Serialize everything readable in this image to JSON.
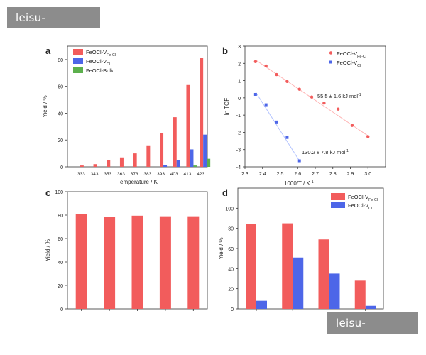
{
  "watermark": {
    "top": "leisu-sina.com",
    "bottom": "leisu-sina.com"
  },
  "colors": {
    "red": "#f25c5c",
    "blue": "#4d66e8",
    "green": "#5cb04d",
    "axis": "#333333",
    "text": "#222222",
    "fit": "#ffb3b3",
    "fit_blue": "#b3c3ff"
  },
  "chart_data": [
    {
      "panel": "a",
      "type": "bar",
      "xlabel": "Temperature / K",
      "ylabel": "Yield / %",
      "ylim": [
        0,
        90
      ],
      "yticks": [
        "0",
        "20",
        "40",
        "60",
        "80"
      ],
      "categories": [
        "333",
        "343",
        "353",
        "363",
        "373",
        "383",
        "393",
        "403",
        "413",
        "423"
      ],
      "legend": [
        {
          "main": "FeOCl-V",
          "sub": "Fe-Cl",
          "tail": ""
        },
        {
          "main": "FeOCl-V",
          "sub": "Cl",
          "tail": ""
        },
        {
          "main": "FeOCl-Bulk",
          "sub": "",
          "tail": ""
        }
      ],
      "series": [
        {
          "name": "FeOCl-VFe-Cl",
          "values": [
            1,
            2,
            5,
            7,
            10,
            16,
            25,
            37,
            61,
            81
          ]
        },
        {
          "name": "FeOCl-VCl",
          "values": [
            0,
            0,
            0,
            0,
            0,
            0,
            1.5,
            5,
            13,
            24
          ]
        },
        {
          "name": "FeOCl-Bulk",
          "values": [
            0,
            0,
            0,
            0,
            0,
            0,
            0,
            0,
            1,
            6
          ]
        }
      ]
    },
    {
      "panel": "b",
      "type": "scatter",
      "xlabel": "1000/T / K",
      "xlabel_sup": "-1",
      "ylabel": "ln TOF",
      "xlim": [
        2.3,
        3.1
      ],
      "ylim": [
        -4,
        3
      ],
      "xticks": [
        "2.3",
        "2.4",
        "2.5",
        "2.6",
        "2.7",
        "2.8",
        "2.9",
        "3.0"
      ],
      "yticks": [
        "-4",
        "-3",
        "-2",
        "-1",
        "0",
        "1",
        "2",
        "3"
      ],
      "legend": [
        {
          "main": "FeOCl-V",
          "sub": "Fe-Cl"
        },
        {
          "main": "FeOCl-V",
          "sub": "Cl"
        }
      ],
      "annotations": [
        {
          "text": "55.5 ± 1.6 kJ mol",
          "sup": "-1"
        },
        {
          "text": "130.2 ± 7.8 kJ mol",
          "sup": "-1"
        }
      ],
      "series": [
        {
          "name": "FeOCl-VFe-Cl",
          "x": [
            2.36,
            2.42,
            2.48,
            2.54,
            2.61,
            2.68,
            2.75,
            2.83,
            2.91,
            3.0
          ],
          "y": [
            2.1,
            1.85,
            1.35,
            0.95,
            0.5,
            0.05,
            -0.3,
            -0.65,
            -1.6,
            -2.25
          ],
          "fit": [
            [
              2.36,
              2.2
            ],
            [
              3.0,
              -2.2
            ]
          ]
        },
        {
          "name": "FeOCl-VCl",
          "x": [
            2.36,
            2.42,
            2.48,
            2.54,
            2.61
          ],
          "y": [
            0.2,
            -0.4,
            -1.4,
            -2.3,
            -3.65
          ],
          "fit": [
            [
              2.36,
              0.35
            ],
            [
              2.61,
              -3.65
            ]
          ]
        }
      ]
    },
    {
      "panel": "c",
      "type": "bar",
      "ylabel": "Yield / %",
      "ylim": [
        0,
        100
      ],
      "yticks": [
        "0",
        "20",
        "40",
        "60",
        "80",
        "100"
      ],
      "series": [
        {
          "name": "FeOCl-VFe-Cl",
          "values": [
            81,
            78.5,
            79.5,
            79,
            79
          ]
        }
      ]
    },
    {
      "panel": "d",
      "type": "bar",
      "ylabel": "Yield / %",
      "ylim": [
        0,
        120
      ],
      "yticks": [
        "0",
        "20",
        "40",
        "60",
        "80",
        "100"
      ],
      "legend": [
        {
          "main": "FeOCl-V",
          "sub": "Fe-Cl"
        },
        {
          "main": "FeOCl-V",
          "sub": "Cl"
        }
      ],
      "series": [
        {
          "name": "FeOCl-VFe-Cl",
          "values": [
            84,
            85,
            69,
            28
          ]
        },
        {
          "name": "FeOCl-VCl",
          "values": [
            8,
            51,
            35,
            3
          ]
        }
      ]
    }
  ]
}
